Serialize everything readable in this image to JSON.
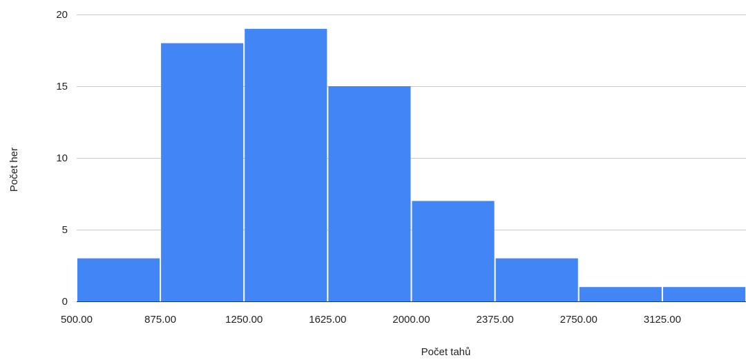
{
  "chart_data": {
    "type": "bar",
    "xlabel": "Počet tahů",
    "ylabel": "Počet her",
    "ylim": [
      0,
      20
    ],
    "yticks": [
      "0",
      "5",
      "10",
      "15",
      "20"
    ],
    "xticks": [
      "500.00",
      "875.00",
      "1250.00",
      "1625.00",
      "2000.00",
      "2375.00",
      "2750.00",
      "3125.00"
    ],
    "bins": [
      {
        "start": 500,
        "end": 875,
        "count": 3
      },
      {
        "start": 875,
        "end": 1250,
        "count": 18
      },
      {
        "start": 1250,
        "end": 1625,
        "count": 19
      },
      {
        "start": 1625,
        "end": 2000,
        "count": 15
      },
      {
        "start": 2000,
        "end": 2375,
        "count": 7
      },
      {
        "start": 2375,
        "end": 2750,
        "count": 3
      },
      {
        "start": 2750,
        "end": 3125,
        "count": 1
      },
      {
        "start": 3125,
        "end": 3500,
        "count": 1
      }
    ],
    "bar_color": "#4285f4",
    "grid": true
  }
}
